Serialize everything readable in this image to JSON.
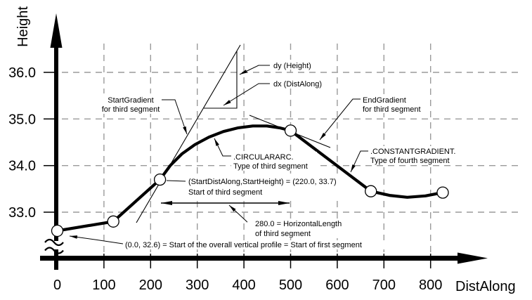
{
  "axes": {
    "x_label": "DistAlong",
    "y_label": "Height"
  },
  "annotations": {
    "start_gradient": {
      "line1": "StartGradient",
      "line2": "for third segment"
    },
    "dy_label": "dy (Height)",
    "dx_label": "dx (DistAlong)",
    "end_gradient": {
      "line1": "EndGradient",
      "line2": "for third segment"
    },
    "circular_arc": {
      "line1": ".CIRCULARARC.",
      "line2": "Type of third segment"
    },
    "constant_gradient": {
      "line1": ".CONSTANTGRADIENT.",
      "line2": "Type of fourth segment"
    },
    "third_segment_start": {
      "line1": "(StartDistAlong,StartHeight) = (220.0, 33.7)",
      "line2": "Start of third segment"
    },
    "horizontal_length": {
      "line1": "280.0 = HorizontalLength",
      "line2": "of third segment"
    },
    "profile_start": "(0.0, 32.6) = Start of the overall vertical profile = Start of first segment"
  },
  "chart_data": {
    "type": "line",
    "title": "",
    "xlabel": "DistAlong",
    "ylabel": "Height",
    "x_ticks": [
      0,
      100,
      200,
      300,
      400,
      500,
      600,
      700,
      800
    ],
    "y_ticks": [
      33,
      34,
      35,
      36
    ],
    "grid": true,
    "segment_boundary_points": [
      [
        0,
        32.6
      ],
      [
        120,
        32.8
      ],
      [
        220,
        33.7
      ],
      [
        500,
        34.75
      ],
      [
        672,
        33.45
      ],
      [
        826,
        33.42
      ]
    ],
    "curve_samples": [
      [
        0,
        32.6
      ],
      [
        120,
        32.8
      ],
      [
        220,
        33.7
      ],
      [
        242,
        34.0
      ],
      [
        267,
        34.25
      ],
      [
        295,
        34.45
      ],
      [
        325,
        34.61
      ],
      [
        356,
        34.73
      ],
      [
        388,
        34.81
      ],
      [
        419,
        34.85
      ],
      [
        449,
        34.85
      ],
      [
        476,
        34.81
      ],
      [
        500,
        34.75
      ],
      [
        672,
        33.45
      ],
      [
        712,
        33.36
      ],
      [
        750,
        33.32
      ],
      [
        789,
        33.35
      ],
      [
        826,
        33.42
      ]
    ],
    "annotated_values": {
      "profile_start_point": [
        0.0,
        32.6
      ],
      "third_segment_start_point": [
        220.0,
        33.7
      ],
      "third_segment_horizontal_length": 280.0,
      "third_segment_type": ".CIRCULARARC.",
      "fourth_segment_type": ".CONSTANTGRADIENT."
    }
  }
}
